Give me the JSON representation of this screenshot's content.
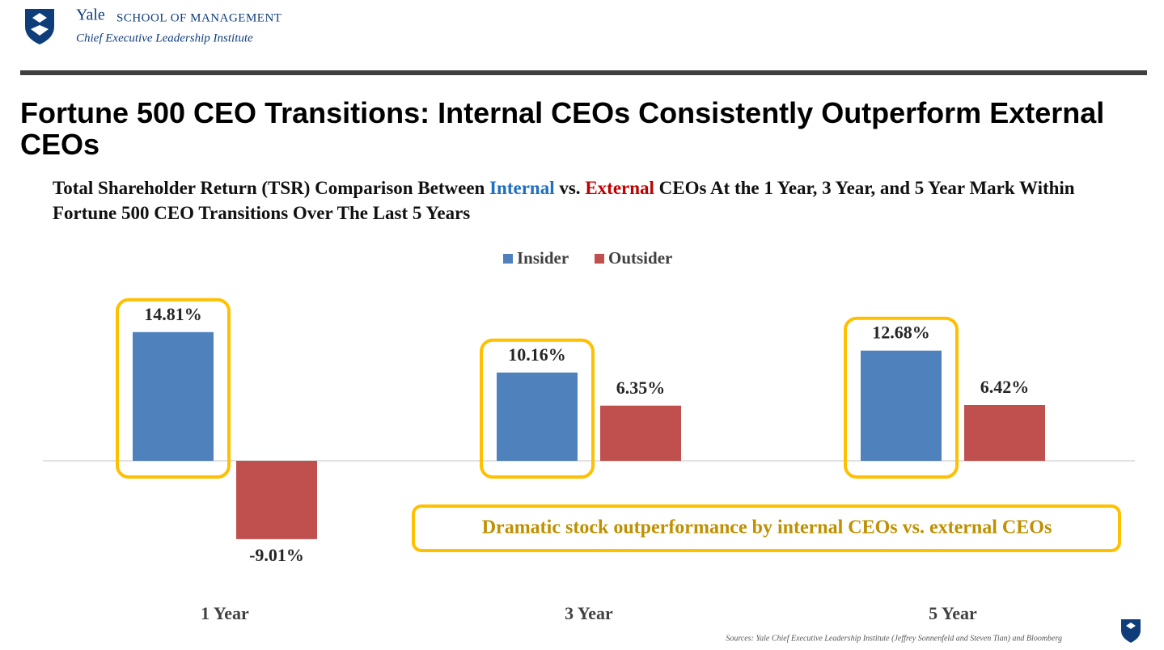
{
  "header": {
    "brand": "Yale",
    "school": "SCHOOL OF MANAGEMENT",
    "institute": "Chief Executive Leadership Institute"
  },
  "chart_data": {
    "type": "bar",
    "title": "Fortune 500 CEO Transitions: Internal CEOs Consistently Outperform External CEOs",
    "subtitle_parts": [
      "Total Shareholder Return (TSR) Comparison Between ",
      "Internal",
      " vs. ",
      "External",
      " CEOs At the 1 Year, 3 Year, and 5 Year Mark Within Fortune 500 CEO Transitions Over The Last 5 Years"
    ],
    "categories": [
      "1 Year",
      "3 Year",
      "5 Year"
    ],
    "series": [
      {
        "name": "Insider",
        "color": "#4f81bd",
        "values": [
          14.81,
          10.16,
          12.68
        ],
        "value_labels": [
          "14.81%",
          "10.16%",
          "12.68%"
        ]
      },
      {
        "name": "Outsider",
        "color": "#c0504d",
        "values": [
          -9.01,
          6.35,
          6.42
        ],
        "value_labels": [
          "-9.01%",
          "6.35%",
          "6.42%"
        ]
      }
    ],
    "ylim": [
      -12,
      18
    ],
    "legend": "top",
    "annotation": "Dramatic stock outperformance by internal CEOs vs. external CEOs",
    "source": "Sources: Yale Chief Executive Leadership Institute (Jeffrey Sonnenfeld and Steven Tian) and Bloomberg"
  }
}
